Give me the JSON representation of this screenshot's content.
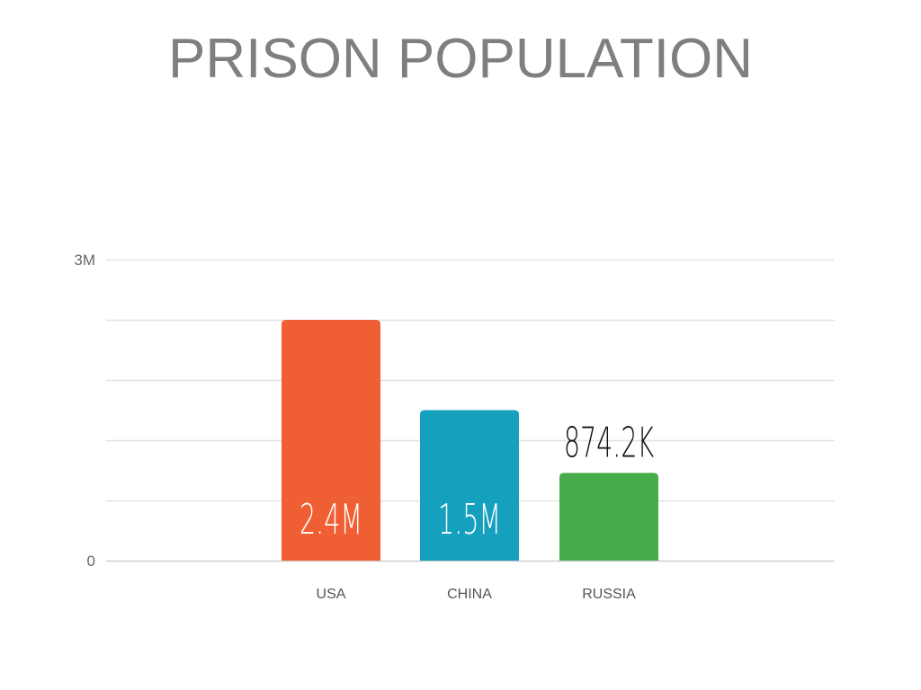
{
  "chart_data": {
    "type": "bar",
    "title": "PRISON POPULATION",
    "categories": [
      "USA",
      "CHINA",
      "RUSSIA"
    ],
    "values": [
      2400000,
      1500000,
      874200
    ],
    "data_labels": [
      "2.4M",
      "1.5M",
      "874.2K"
    ],
    "ylim": [
      0,
      3000000
    ],
    "y_ticks": [
      {
        "value": 0,
        "label": "0"
      },
      {
        "value": 3000000,
        "label": "3M"
      }
    ],
    "gridlines": [
      0,
      600000,
      1200000,
      1800000,
      2400000,
      3000000
    ],
    "grid": true,
    "colors": [
      "#f05f33",
      "#15a0bd",
      "#48ac4b"
    ],
    "label_colors": [
      "#ffffff",
      "#ffffff",
      "#111111"
    ],
    "label_placement": [
      "inside",
      "inside",
      "above"
    ],
    "xlabel": "",
    "ylabel": ""
  }
}
